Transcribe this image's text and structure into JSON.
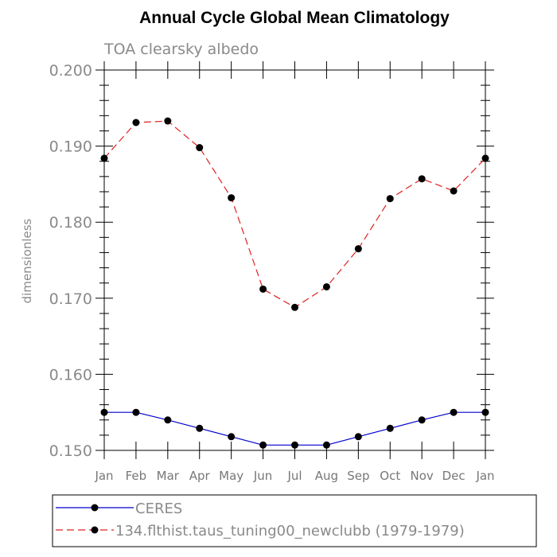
{
  "chart_data": {
    "type": "line",
    "title": "Annual Cycle Global Mean Climatology",
    "subtitle": "TOA clearsky albedo",
    "ylabel": "dimensionless",
    "xlabel": "",
    "categories": [
      "Jan",
      "Feb",
      "Mar",
      "Apr",
      "May",
      "Jun",
      "Jul",
      "Aug",
      "Sep",
      "Oct",
      "Nov",
      "Dec",
      "Jan"
    ],
    "ylim": [
      0.15,
      0.2
    ],
    "yticks": [
      "0.150",
      "0.160",
      "0.170",
      "0.180",
      "0.190",
      "0.200"
    ],
    "grid": false,
    "legend_placement": "bottom",
    "series": [
      {
        "name": "CERES",
        "color": "#0000cc",
        "dash": "solid",
        "values": [
          0.155,
          0.155,
          0.154,
          0.1529,
          0.1518,
          0.1507,
          0.1507,
          0.1507,
          0.1518,
          0.1529,
          0.154,
          0.155,
          0.155
        ]
      },
      {
        "name": "134.flthist.taus_tuning00_newclubb (1979-1979)",
        "color": "#e02020",
        "dash": "dashed",
        "values": [
          0.1884,
          0.1931,
          0.1933,
          0.1898,
          0.1832,
          0.1712,
          0.1688,
          0.1715,
          0.1765,
          0.1831,
          0.1857,
          0.1841,
          0.1884
        ]
      }
    ]
  }
}
